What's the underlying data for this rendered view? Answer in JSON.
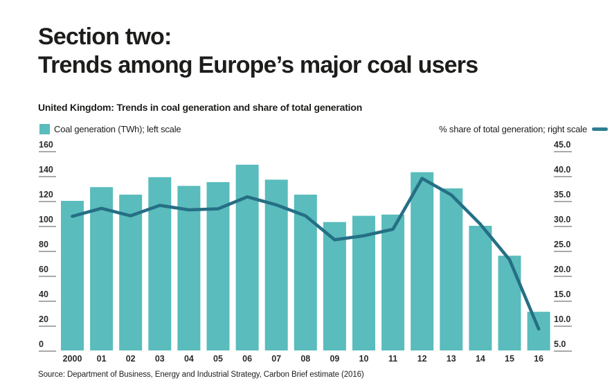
{
  "page": {
    "title_line1": "Section two:",
    "title_line2": "Trends among Europe’s major coal users",
    "subtitle": "United Kingdom: Trends in coal generation and share of total generation",
    "source": "Source: Department of Business, Energy and Industrial Strategy, Carbon Brief estimate (2016)"
  },
  "legend": {
    "bars_label": "Coal generation (TWh); left scale",
    "line_label": "% share of total generation; right scale"
  },
  "colors": {
    "bar": "#5abcbc",
    "line": "#256f85",
    "legend_dash": "#2e7d92",
    "tick_underline": "#a9a9a9",
    "text": "#1d1d1b"
  },
  "chart_data": {
    "type": "bar",
    "title": "United Kingdom: Trends in coal generation and share of total generation",
    "categories": [
      "2000",
      "01",
      "02",
      "03",
      "04",
      "05",
      "06",
      "07",
      "08",
      "09",
      "10",
      "11",
      "12",
      "13",
      "14",
      "15",
      "16"
    ],
    "series": [
      {
        "name": "Coal generation (TWh)",
        "type": "bar",
        "axis": "left",
        "values": [
          120,
          131,
          125,
          139,
          132,
          135,
          149,
          137,
          125,
          103,
          108,
          109,
          143,
          130,
          100,
          76,
          31
        ]
      },
      {
        "name": "% share of total generation",
        "type": "line",
        "axis": "right",
        "values": [
          31.9,
          33.5,
          32.0,
          34.1,
          33.2,
          33.4,
          35.8,
          34.2,
          32.0,
          27.2,
          28.0,
          29.3,
          39.5,
          36.2,
          30.3,
          23.2,
          9.3
        ]
      }
    ],
    "left_axis": {
      "min": 0,
      "max": 160,
      "step": 20,
      "tick_labels": [
        "160",
        "140",
        "120",
        "100",
        "80",
        "60",
        "40",
        "20",
        "0"
      ]
    },
    "right_axis": {
      "min": 5.0,
      "max": 45.0,
      "step": 5.0,
      "tick_labels": [
        "45.0",
        "40.0",
        "35.0",
        "30.0",
        "25.0",
        "20.0",
        "15.0",
        "10.0",
        "5.0"
      ]
    },
    "grid": false,
    "legend_position": "top"
  }
}
